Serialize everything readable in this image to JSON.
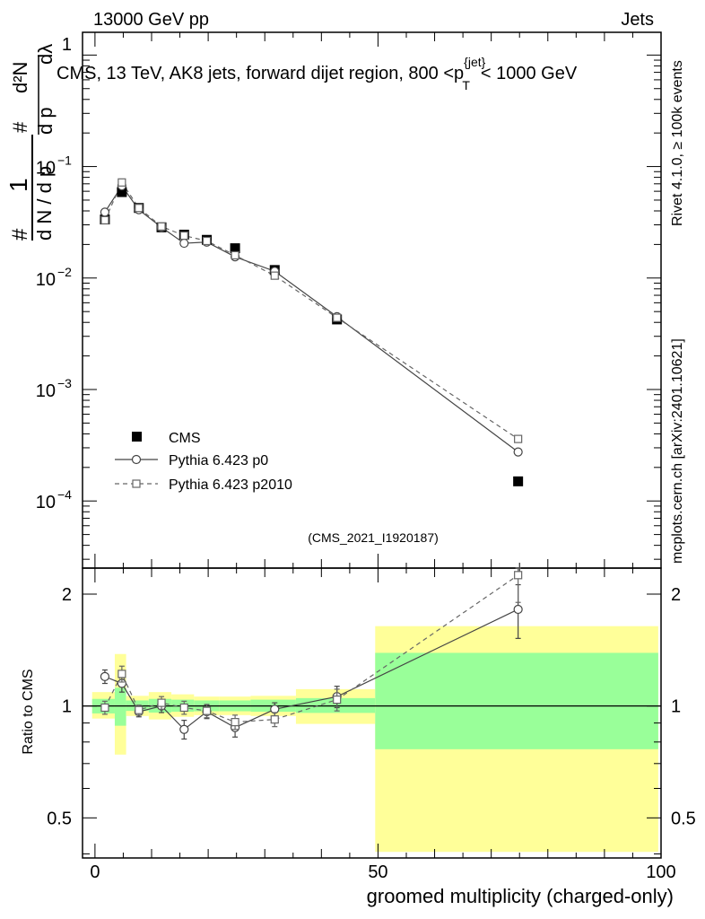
{
  "header": {
    "left_label": "13000 GeV pp",
    "right_label": "Jets"
  },
  "side_labels": {
    "rivet": "Rivet 4.1.0, ≥ 100k events",
    "mcplots": "mcplots.cern.ch [arXiv:2401.10621]"
  },
  "chart_data": [
    {
      "type": "line",
      "title": "CMS, 13 TeV, AK8 jets, forward dijet region, 800 <p{jet}T< 1000 GeV",
      "title_parts": {
        "before": "CMS, 13 TeV, AK8 jets, forward dijet region, 800 <p",
        "sup": "{jet}",
        "sub": "T",
        "after": "< 1000 GeV"
      },
      "ylabel": "1/(dN/dpT) d²N/(dpT dλ)",
      "ylabel_parts": {
        "one": "1",
        "hash": "#",
        "denom": "d N / d p",
        "T": "T",
        "num_top": "d²N",
        "num_bot": "d p",
        "lam": "dλ"
      },
      "yscale": "log",
      "ylim": [
        2.5e-05,
        1.6
      ],
      "xlim": [
        -2.2,
        100
      ],
      "yticks_major": [
        1,
        2,
        3,
        4
      ],
      "ytick_labels": [
        {
          "base": "10",
          "exp": "−1"
        },
        {
          "base": "10",
          "exp": "−2"
        },
        {
          "base": "10",
          "exp": "−3"
        },
        {
          "base": "10",
          "exp": "−4"
        }
      ],
      "ytick_top_label": "1",
      "watermark": "(CMS_2021_I1920187)",
      "legend": {
        "position": "lower-left",
        "entries": [
          "CMS",
          "Pythia 6.423 p0",
          "Pythia 6.423 p2010"
        ]
      },
      "series": [
        {
          "name": "CMS",
          "x": [
            1.75,
            4.75,
            7.75,
            11.75,
            15.75,
            19.75,
            24.75,
            31.75,
            42.75,
            74.75
          ],
          "y": [
            0.0335,
            0.059,
            0.0425,
            0.0285,
            0.0245,
            0.022,
            0.0185,
            0.0118,
            0.00425,
            0.00015
          ]
        },
        {
          "name": "Pythia 6.423 p0",
          "x": [
            1.75,
            4.75,
            7.75,
            11.75,
            15.75,
            19.75,
            24.75,
            31.75,
            42.75,
            74.75
          ],
          "y": [
            0.039,
            0.067,
            0.041,
            0.0285,
            0.0205,
            0.021,
            0.0155,
            0.0115,
            0.0045,
            0.000275
          ]
        },
        {
          "name": "Pythia 6.423 p2010",
          "x": [
            1.75,
            4.75,
            7.75,
            11.75,
            15.75,
            19.75,
            24.75,
            31.75,
            42.75,
            74.75
          ],
          "y": [
            0.033,
            0.072,
            0.0425,
            0.029,
            0.024,
            0.0215,
            0.016,
            0.0105,
            0.0044,
            0.00036
          ]
        }
      ]
    },
    {
      "type": "line",
      "ylabel": "Ratio to CMS",
      "xlabel": "groomed multiplicity (charged-only)",
      "yscale": "log",
      "ylim": [
        0.39,
        2.35
      ],
      "xlim": [
        -2.2,
        100
      ],
      "yticks": [
        0.5,
        1,
        2
      ],
      "ytick_labels": [
        "0.5",
        "1",
        "2"
      ],
      "xticks": [
        0,
        50,
        100
      ],
      "xtick_labels": [
        "0",
        "50",
        "100"
      ],
      "bands": [
        {
          "x0": -0.5,
          "x1": 3.5,
          "stat_lo": 0.955,
          "stat_hi": 1.045,
          "tot_lo": 0.925,
          "tot_hi": 1.09
        },
        {
          "x0": 3.5,
          "x1": 5.5,
          "stat_lo": 0.885,
          "stat_hi": 1.12,
          "tot_lo": 0.74,
          "tot_hi": 1.38
        },
        {
          "x0": 5.5,
          "x1": 9.5,
          "stat_lo": 0.97,
          "stat_hi": 1.035,
          "tot_lo": 0.94,
          "tot_hi": 1.065
        },
        {
          "x0": 9.5,
          "x1": 13.5,
          "stat_lo": 0.96,
          "stat_hi": 1.045,
          "tot_lo": 0.92,
          "tot_hi": 1.09
        },
        {
          "x0": 13.5,
          "x1": 17.5,
          "stat_lo": 0.965,
          "stat_hi": 1.04,
          "tot_lo": 0.935,
          "tot_hi": 1.075
        },
        {
          "x0": 17.5,
          "x1": 22.0,
          "stat_lo": 0.968,
          "stat_hi": 1.035,
          "tot_lo": 0.945,
          "tot_hi": 1.06
        },
        {
          "x0": 22.0,
          "x1": 27.5,
          "stat_lo": 0.968,
          "stat_hi": 1.035,
          "tot_lo": 0.945,
          "tot_hi": 1.06
        },
        {
          "x0": 27.5,
          "x1": 35.5,
          "stat_lo": 0.965,
          "stat_hi": 1.04,
          "tot_lo": 0.94,
          "tot_hi": 1.065
        },
        {
          "x0": 35.5,
          "x1": 49.5,
          "stat_lo": 0.958,
          "stat_hi": 1.05,
          "tot_lo": 0.895,
          "tot_hi": 1.11
        },
        {
          "x0": 49.5,
          "x1": 99.5,
          "stat_lo": 0.765,
          "stat_hi": 1.39,
          "tot_lo": 0.405,
          "tot_hi": 1.64
        }
      ],
      "series": [
        {
          "name": "Pythia 6.423 p0",
          "x": [
            1.75,
            4.75,
            7.75,
            11.75,
            15.75,
            19.75,
            24.75,
            31.75,
            42.75,
            74.75
          ],
          "y": [
            1.2,
            1.15,
            0.965,
            1.0,
            0.865,
            0.965,
            0.875,
            0.98,
            1.06,
            1.82
          ],
          "err": [
            0.05,
            0.06,
            0.03,
            0.04,
            0.05,
            0.04,
            0.05,
            0.04,
            0.07,
            0.3
          ]
        },
        {
          "name": "Pythia 6.423 p2010",
          "x": [
            1.75,
            4.75,
            7.75,
            11.75,
            15.75,
            19.75,
            24.75,
            31.75,
            42.75,
            74.75
          ],
          "y": [
            0.99,
            1.22,
            0.975,
            1.02,
            0.99,
            0.97,
            0.905,
            0.92,
            1.04,
            2.25
          ],
          "err": [
            0.04,
            0.06,
            0.03,
            0.04,
            0.04,
            0.04,
            0.04,
            0.04,
            0.07,
            0.35
          ]
        }
      ]
    }
  ],
  "colors": {
    "cms": "#000000",
    "p0": "#444444",
    "p2010": "#666666",
    "band_stat": "#99ff99",
    "band_total": "#ffff99",
    "watermark": "#999999",
    "side_text": "#888888"
  }
}
